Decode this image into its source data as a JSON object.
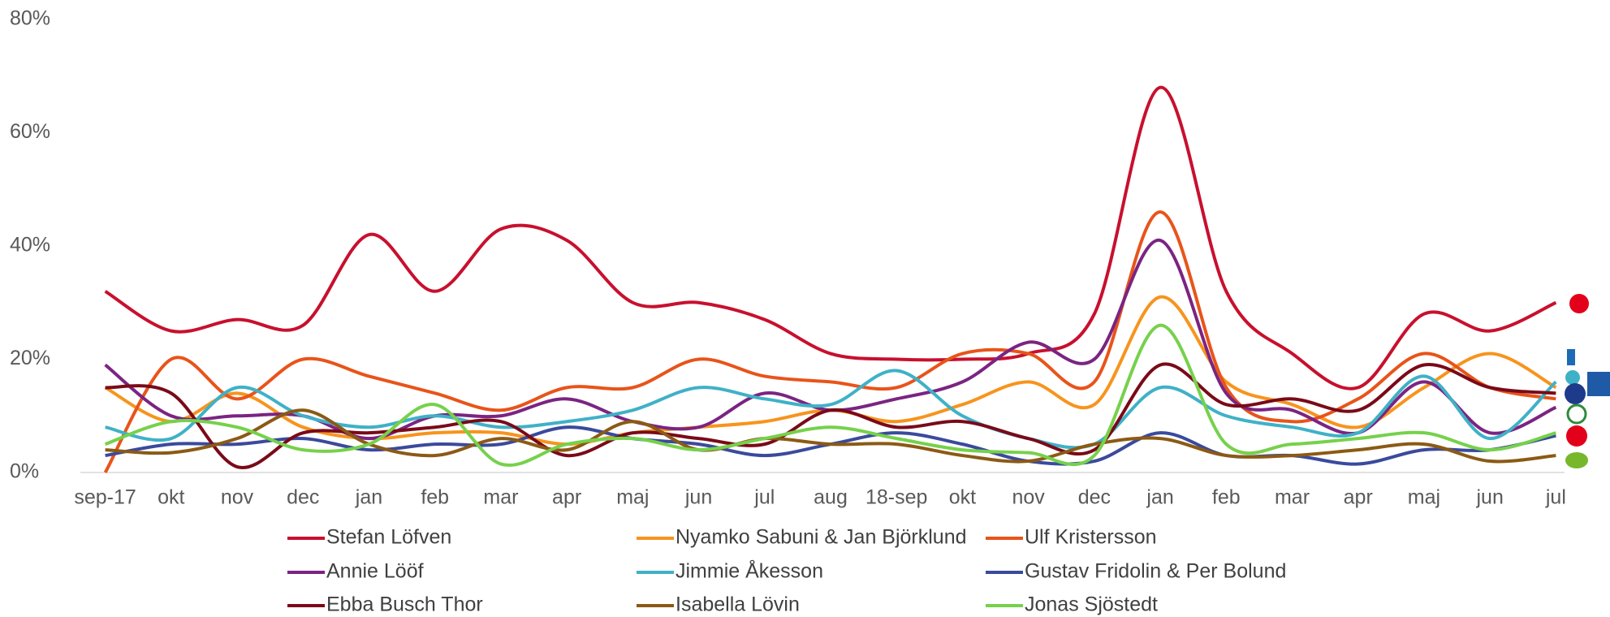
{
  "chart_data": {
    "type": "line",
    "categories": [
      "sep-17",
      "okt",
      "nov",
      "dec",
      "jan",
      "feb",
      "mar",
      "apr",
      "maj",
      "jun",
      "jul",
      "aug",
      "18-sep",
      "okt",
      "nov",
      "dec",
      "jan",
      "feb",
      "mar",
      "apr",
      "maj",
      "jun",
      "jul"
    ],
    "ylim": [
      0,
      80
    ],
    "yticks": [
      {
        "value": 0,
        "label": "0%"
      },
      {
        "value": 20,
        "label": "20%"
      },
      {
        "value": 40,
        "label": "40%"
      },
      {
        "value": 60,
        "label": "60%"
      },
      {
        "value": 80,
        "label": "80%"
      }
    ],
    "grid": false,
    "series": [
      {
        "name": "Stefan Löfven",
        "color": "#c8102e",
        "values": [
          32,
          25,
          27,
          26,
          42,
          32,
          43,
          41,
          30,
          30,
          27,
          21,
          20,
          20,
          21,
          28,
          68,
          32,
          21,
          15,
          28,
          25,
          30
        ]
      },
      {
        "name": "Nyamko Sabuni & Jan Björklund",
        "color": "#f7941d",
        "values": [
          15,
          9,
          14,
          8,
          6,
          7,
          7,
          5,
          7,
          8,
          9,
          11,
          9,
          12,
          16,
          12,
          31,
          16,
          12,
          8,
          15,
          21,
          15
        ]
      },
      {
        "name": "Ulf Kristersson",
        "color": "#e8541a",
        "values": [
          0,
          20,
          13,
          20,
          17,
          14,
          11,
          15,
          15,
          20,
          17,
          16,
          15,
          21,
          21,
          16,
          46,
          15,
          9,
          13,
          21,
          15,
          13
        ]
      },
      {
        "name": "Annie Lööf",
        "color": "#7b2482",
        "values": [
          19,
          10,
          10,
          10,
          6,
          10,
          10,
          13,
          9,
          8,
          14,
          11,
          13,
          16,
          23,
          20,
          41,
          14,
          11,
          7,
          16,
          7,
          11.5
        ]
      },
      {
        "name": "Jimmie Åkesson",
        "color": "#3fb1c7",
        "values": [
          8,
          6,
          15,
          10,
          8,
          10,
          8,
          9,
          11,
          15,
          13,
          12,
          18,
          10,
          6,
          5,
          15,
          10,
          8,
          7,
          17,
          6,
          16
        ]
      },
      {
        "name": "Gustav Fridolin & Per Bolund",
        "color": "#3a4a9c",
        "values": [
          3,
          5,
          5,
          6,
          4,
          5,
          5,
          8,
          6,
          5,
          3,
          5,
          7,
          5,
          2,
          2,
          7,
          3,
          3,
          1.5,
          4,
          4,
          6.5
        ]
      },
      {
        "name": "Ebba Busch Thor",
        "color": "#7a0a18",
        "values": [
          15,
          14,
          1,
          7,
          7,
          8,
          9,
          3,
          7,
          6,
          5,
          11,
          8,
          9,
          6,
          4,
          19,
          12,
          13,
          11,
          19,
          15,
          14
        ]
      },
      {
        "name": "Isabella Lövin",
        "color": "#8b5a14",
        "values": [
          4,
          3.5,
          6,
          11,
          5,
          3,
          6,
          4,
          9,
          4,
          6,
          5,
          5,
          3,
          2,
          5,
          6,
          3,
          3,
          4,
          5,
          2,
          3
        ]
      },
      {
        "name": "Jonas Sjöstedt",
        "color": "#76d14b",
        "values": [
          5,
          9,
          8,
          4,
          5,
          12,
          1.5,
          5,
          6,
          4,
          6,
          8,
          6,
          4,
          3.5,
          3,
          26,
          5,
          5,
          6,
          7,
          4,
          7
        ]
      }
    ]
  }
}
